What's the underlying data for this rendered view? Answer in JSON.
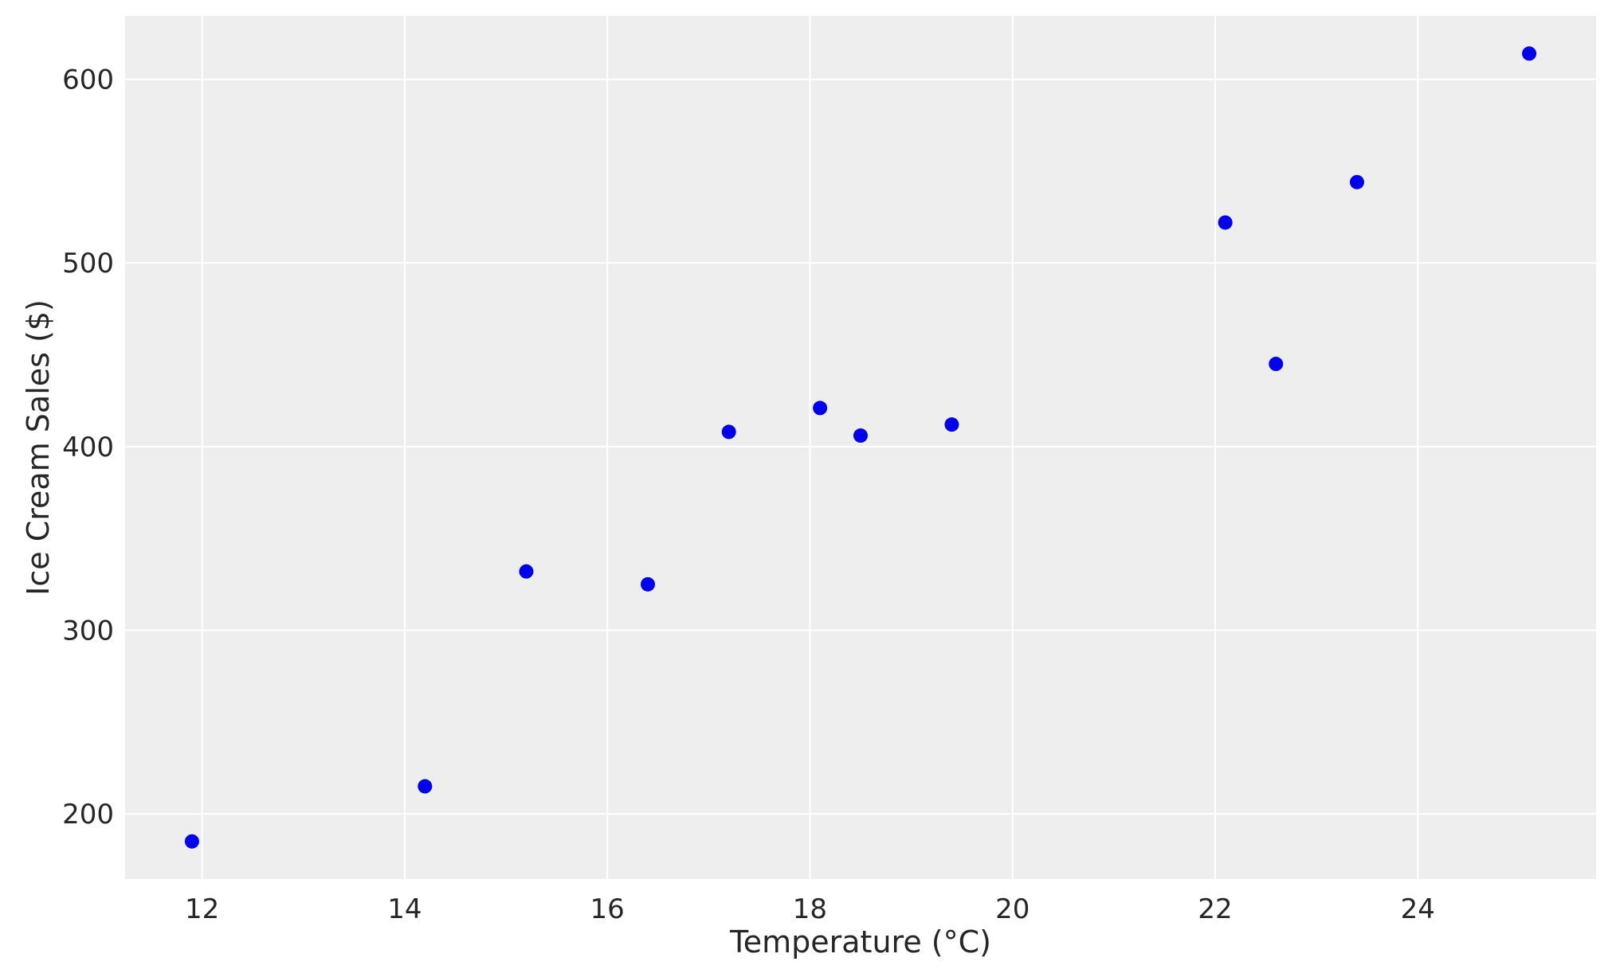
{
  "chart_data": {
    "type": "scatter",
    "title": "",
    "xlabel": "Temperature (°C)",
    "ylabel": "Ice Cream Sales ($)",
    "xlim": [
      11.24,
      25.76
    ],
    "ylim": [
      164.5,
      634.5
    ],
    "xticks": [
      12,
      14,
      16,
      18,
      20,
      22,
      24
    ],
    "yticks": [
      200,
      300,
      400,
      500,
      600
    ],
    "grid": true,
    "background": "#eeeeee",
    "grid_color": "#ffffff",
    "marker_color": "#0000ee",
    "points": [
      {
        "x": 11.9,
        "y": 185
      },
      {
        "x": 14.2,
        "y": 215
      },
      {
        "x": 15.2,
        "y": 332
      },
      {
        "x": 16.4,
        "y": 325
      },
      {
        "x": 17.2,
        "y": 408
      },
      {
        "x": 18.1,
        "y": 421
      },
      {
        "x": 18.5,
        "y": 406
      },
      {
        "x": 19.4,
        "y": 412
      },
      {
        "x": 22.1,
        "y": 522
      },
      {
        "x": 22.6,
        "y": 445
      },
      {
        "x": 23.4,
        "y": 544
      },
      {
        "x": 25.1,
        "y": 614
      }
    ]
  }
}
